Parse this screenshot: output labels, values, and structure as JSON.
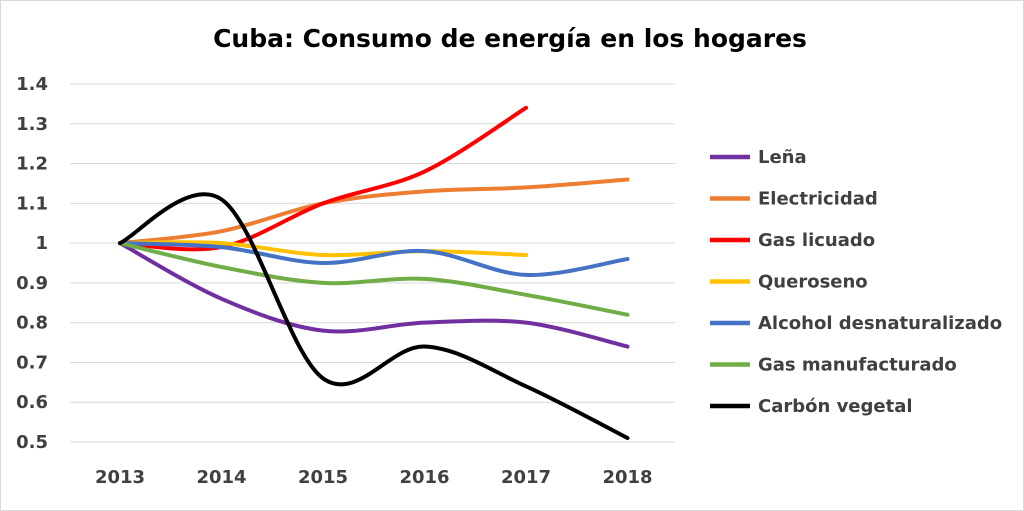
{
  "chart_data": {
    "type": "line",
    "title": "Cuba: Consumo de energía en los hogares",
    "xlabel": "",
    "ylabel": "",
    "categories": [
      "2013",
      "2014",
      "2015",
      "2016",
      "2017",
      "2018"
    ],
    "ylim": [
      0.5,
      1.4
    ],
    "yticks": [
      "1.4",
      "1.3",
      "1.2",
      "1.1",
      "1",
      "0.9",
      "0.8",
      "0.7",
      "0.6",
      "0.5"
    ],
    "grid": true,
    "smooth": true,
    "legend_position": "right",
    "series": [
      {
        "name": "Leña",
        "color": "#7030a0",
        "values": [
          1.0,
          0.86,
          0.78,
          0.8,
          0.8,
          0.74
        ]
      },
      {
        "name": "Electricidad",
        "color": "#ed7d31",
        "values": [
          1.0,
          1.03,
          1.1,
          1.13,
          1.14,
          1.16
        ]
      },
      {
        "name": "Gas licuado",
        "color": "#ff0000",
        "values": [
          1.0,
          0.99,
          1.1,
          1.18,
          1.34,
          null
        ]
      },
      {
        "name": "Queroseno",
        "color": "#ffc000",
        "values": [
          1.0,
          1.0,
          0.97,
          0.98,
          0.97,
          null
        ]
      },
      {
        "name": "Alcohol desnaturalizado",
        "color": "#4472c4",
        "values": [
          1.0,
          0.99,
          0.95,
          0.98,
          0.92,
          0.96
        ]
      },
      {
        "name": "Gas manufacturado",
        "color": "#70ad47",
        "values": [
          1.0,
          0.94,
          0.9,
          0.91,
          0.87,
          0.82
        ]
      },
      {
        "name": "Carbón vegetal",
        "color": "#000000",
        "values": [
          1.0,
          1.11,
          0.66,
          0.74,
          0.64,
          0.51
        ]
      }
    ]
  }
}
